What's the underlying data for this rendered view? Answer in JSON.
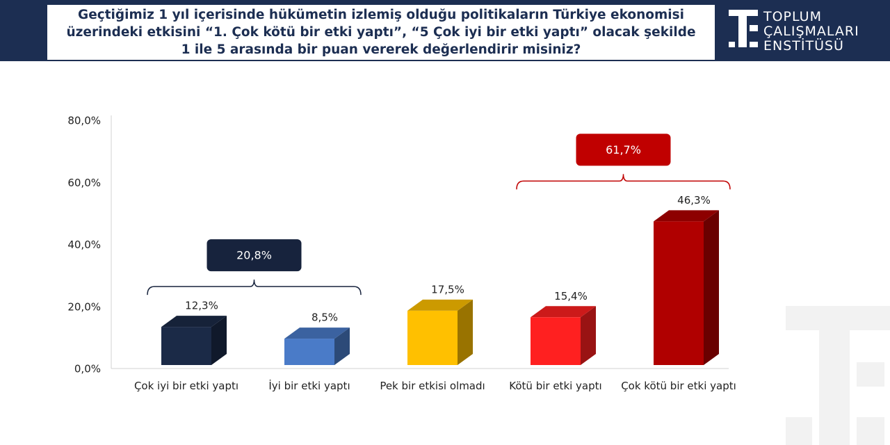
{
  "header": {
    "title": "Geçtiğimiz 1 yıl içerisinde hükümetin izlemiş olduğu politikaların Türkiye ekonomisi üzerindeki etkisini “1. Çok kötü bir etki yaptı”, “5 Çok iyi bir etki yaptı” olacak şekilde 1 ile 5 arasında bir puan vererek değerlendirir misiniz?",
    "logo": [
      "TOPLUM",
      "ÇALIŞMALARI",
      "ENSTİTÜSÜ"
    ]
  },
  "chart_data": {
    "type": "bar3d",
    "categories": [
      "Çok iyi bir etki yaptı",
      "İyi bir etki yaptı",
      "Pek bir etkisi olmadı",
      "Kötü bir etki yaptı",
      "Çok kötü bir etki yaptı"
    ],
    "values": [
      12.3,
      8.5,
      17.5,
      15.4,
      46.3
    ],
    "value_labels": [
      "12,3%",
      "8,5%",
      "17,5%",
      "15,4%",
      "46,3%"
    ],
    "colors": [
      "#1b2a47",
      "#4a7bc8",
      "#ffc000",
      "#ff2020",
      "#b00000"
    ],
    "ylim": [
      0,
      80
    ],
    "yticks": [
      {
        "value": 0,
        "label": "0,0%"
      },
      {
        "value": 20,
        "label": "20,0%"
      },
      {
        "value": 40,
        "label": "40,0%"
      },
      {
        "value": 60,
        "label": "60,0%"
      },
      {
        "value": 80,
        "label": "80,0%"
      }
    ],
    "grid": false,
    "groups": [
      {
        "categories": [
          "Çok iyi bir etki yaptı",
          "İyi bir etki yaptı"
        ],
        "value": 20.8,
        "label": "20,8%",
        "color": "#17233d"
      },
      {
        "categories": [
          "Kötü bir etki yaptı",
          "Çok kötü bir etki yaptı"
        ],
        "value": 61.7,
        "label": "61,7%",
        "color": "#c00000"
      }
    ]
  }
}
